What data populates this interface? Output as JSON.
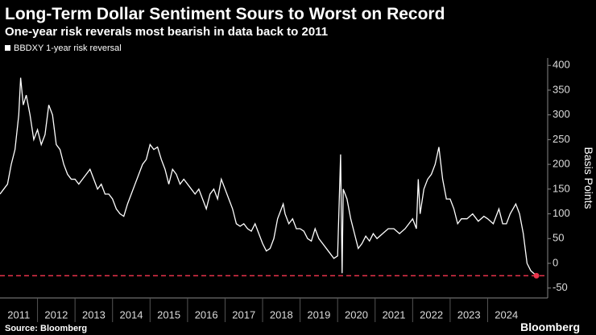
{
  "chart_data": {
    "type": "line",
    "title": "Long-Term Dollar Sentiment Sours to Worst on Record",
    "subtitle": "One-year risk reverals most bearish in data back to 2011",
    "y_axis_label": "Basis Points",
    "source": "Source: Bloomberg",
    "brand": "Bloomberg",
    "legend_position": "top-left",
    "reference_line": {
      "value": -25,
      "color": "#e8334a"
    },
    "xlim": [
      2011,
      2025.6
    ],
    "xticks": [
      {
        "value": 2011.5,
        "label": "2011"
      },
      {
        "value": 2012.5,
        "label": "2012"
      },
      {
        "value": 2013.5,
        "label": "2013"
      },
      {
        "value": 2014.5,
        "label": "2014"
      },
      {
        "value": 2015.5,
        "label": "2015"
      },
      {
        "value": 2016.5,
        "label": "2016"
      },
      {
        "value": 2017.5,
        "label": "2017"
      },
      {
        "value": 2018.5,
        "label": "2018"
      },
      {
        "value": 2019.5,
        "label": "2019"
      },
      {
        "value": 2020.5,
        "label": "2020"
      },
      {
        "value": 2021.5,
        "label": "2021"
      },
      {
        "value": 2022.5,
        "label": "2022"
      },
      {
        "value": 2023.5,
        "label": "2023"
      },
      {
        "value": 2024.5,
        "label": "2024"
      }
    ],
    "ylim": [
      -70,
      415
    ],
    "yticks": [
      -50,
      0,
      50,
      100,
      150,
      200,
      250,
      300,
      350,
      400
    ],
    "x": [
      2011.0,
      2011.1,
      2011.2,
      2011.3,
      2011.4,
      2011.5,
      2011.55,
      2011.62,
      2011.7,
      2011.8,
      2011.9,
      2012.0,
      2012.1,
      2012.2,
      2012.3,
      2012.4,
      2012.5,
      2012.6,
      2012.7,
      2012.8,
      2012.9,
      2013.0,
      2013.1,
      2013.2,
      2013.3,
      2013.4,
      2013.5,
      2013.6,
      2013.7,
      2013.8,
      2013.9,
      2014.0,
      2014.1,
      2014.2,
      2014.3,
      2014.4,
      2014.5,
      2014.6,
      2014.7,
      2014.8,
      2014.9,
      2015.0,
      2015.1,
      2015.2,
      2015.3,
      2015.4,
      2015.5,
      2015.6,
      2015.7,
      2015.8,
      2015.9,
      2016.0,
      2016.1,
      2016.2,
      2016.3,
      2016.4,
      2016.5,
      2016.6,
      2016.7,
      2016.8,
      2016.9,
      2017.0,
      2017.1,
      2017.2,
      2017.3,
      2017.4,
      2017.5,
      2017.6,
      2017.7,
      2017.8,
      2017.9,
      2018.0,
      2018.1,
      2018.2,
      2018.3,
      2018.4,
      2018.5,
      2018.55,
      2018.6,
      2018.7,
      2018.8,
      2018.9,
      2019.0,
      2019.1,
      2019.2,
      2019.3,
      2019.4,
      2019.5,
      2019.6,
      2019.7,
      2019.8,
      2019.9,
      2020.0,
      2020.08,
      2020.12,
      2020.15,
      2020.25,
      2020.35,
      2020.45,
      2020.55,
      2020.65,
      2020.75,
      2020.85,
      2020.95,
      2021.05,
      2021.2,
      2021.35,
      2021.5,
      2021.65,
      2021.8,
      2021.9,
      2022.0,
      2022.1,
      2022.15,
      2022.2,
      2022.3,
      2022.4,
      2022.5,
      2022.6,
      2022.7,
      2022.8,
      2022.9,
      2023.0,
      2023.1,
      2023.2,
      2023.3,
      2023.45,
      2023.6,
      2023.75,
      2023.9,
      2024.0,
      2024.15,
      2024.3,
      2024.4,
      2024.5,
      2024.6,
      2024.75,
      2024.85,
      2024.95,
      2025.05,
      2025.15,
      2025.3
    ],
    "series": [
      {
        "name": "BBDXY 1-year risk reversal",
        "color": "#ffffff",
        "values": [
          140,
          150,
          160,
          200,
          230,
          300,
          375,
          320,
          340,
          300,
          250,
          270,
          240,
          260,
          320,
          300,
          240,
          230,
          200,
          180,
          170,
          170,
          160,
          170,
          180,
          190,
          170,
          150,
          160,
          140,
          140,
          130,
          110,
          100,
          95,
          120,
          140,
          160,
          180,
          200,
          210,
          240,
          230,
          235,
          210,
          190,
          160,
          190,
          180,
          160,
          170,
          160,
          150,
          140,
          150,
          130,
          110,
          140,
          150,
          130,
          170,
          150,
          130,
          110,
          80,
          75,
          80,
          70,
          65,
          80,
          60,
          40,
          25,
          30,
          50,
          90,
          110,
          120,
          100,
          80,
          90,
          70,
          70,
          65,
          50,
          45,
          70,
          50,
          40,
          30,
          20,
          10,
          15,
          220,
          -20,
          150,
          130,
          90,
          60,
          30,
          40,
          55,
          45,
          60,
          50,
          60,
          70,
          70,
          60,
          70,
          80,
          90,
          70,
          170,
          100,
          150,
          170,
          180,
          200,
          235,
          170,
          130,
          130,
          110,
          80,
          90,
          90,
          100,
          85,
          95,
          90,
          80,
          110,
          80,
          80,
          100,
          120,
          100,
          60,
          0,
          -15,
          -25
        ]
      }
    ]
  }
}
